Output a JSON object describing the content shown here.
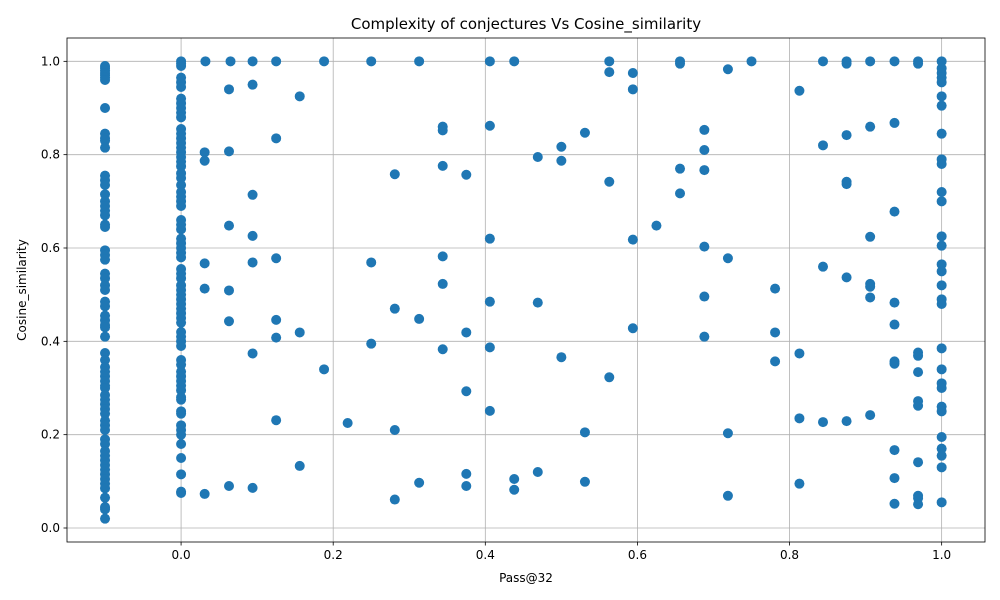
{
  "chart_data": {
    "type": "scatter",
    "title": "Complexity of conjectures Vs Cosine_similarity",
    "xlabel": "Pass@32",
    "ylabel": "Cosine_similarity",
    "xlim": [
      -0.15,
      1.057
    ],
    "ylim": [
      -0.03,
      1.05
    ],
    "xticks": [
      0.0,
      0.2,
      0.4,
      0.6,
      0.8,
      1.0
    ],
    "xtick_labels": [
      "0.0",
      "0.2",
      "0.4",
      "0.6",
      "0.8",
      "1.0"
    ],
    "yticks": [
      0.0,
      0.2,
      0.4,
      0.6,
      0.8,
      1.0
    ],
    "ytick_labels": [
      "0.0",
      "0.2",
      "0.4",
      "0.6",
      "0.8",
      "1.0"
    ],
    "grid": true,
    "marker_color": "#1f77b4",
    "columns": [
      {
        "x": -0.1,
        "y": [
          0.99,
          0.985,
          0.98,
          0.975,
          0.97,
          0.965,
          0.96,
          0.9,
          0.845,
          0.835,
          0.83,
          0.815,
          0.755,
          0.745,
          0.735,
          0.715,
          0.7,
          0.69,
          0.68,
          0.67,
          0.65,
          0.645,
          0.595,
          0.585,
          0.575,
          0.545,
          0.535,
          0.52,
          0.51,
          0.485,
          0.475,
          0.455,
          0.445,
          0.435,
          0.43,
          0.41,
          0.375,
          0.36,
          0.345,
          0.335,
          0.325,
          0.315,
          0.305,
          0.3,
          0.285,
          0.275,
          0.265,
          0.255,
          0.245,
          0.23,
          0.22,
          0.21,
          0.19,
          0.18,
          0.165,
          0.155,
          0.145,
          0.135,
          0.125,
          0.115,
          0.105,
          0.095,
          0.085,
          0.065,
          0.045,
          0.04,
          0.02
        ]
      },
      {
        "x": 0.0,
        "y": [
          1.0,
          0.995,
          0.99,
          0.965,
          0.955,
          0.945,
          0.92,
          0.91,
          0.9,
          0.89,
          0.88,
          0.855,
          0.845,
          0.835,
          0.825,
          0.815,
          0.805,
          0.795,
          0.785,
          0.775,
          0.76,
          0.75,
          0.735,
          0.72,
          0.71,
          0.7,
          0.69,
          0.66,
          0.65,
          0.64,
          0.62,
          0.61,
          0.6,
          0.59,
          0.58,
          0.555,
          0.545,
          0.535,
          0.52,
          0.51,
          0.5,
          0.49,
          0.48,
          0.47,
          0.46,
          0.45,
          0.44,
          0.42,
          0.41,
          0.4,
          0.39,
          0.36,
          0.35,
          0.335,
          0.325,
          0.315,
          0.305,
          0.295,
          0.28,
          0.275,
          0.25,
          0.245,
          0.22,
          0.21,
          0.2,
          0.18,
          0.15,
          0.115,
          0.078,
          0.075
        ]
      },
      {
        "x": 1.0,
        "y": [
          1.0,
          0.985,
          0.975,
          0.965,
          0.955,
          0.925,
          0.905,
          0.845,
          0.79,
          0.78,
          0.72,
          0.7,
          0.625,
          0.605,
          0.565,
          0.55,
          0.52,
          0.49,
          0.48,
          0.385,
          0.34,
          0.31,
          0.3,
          0.26,
          0.25,
          0.195,
          0.17,
          0.155,
          0.13,
          0.055
        ]
      }
    ],
    "points": [
      [
        0.032,
        1.0
      ],
      [
        0.065,
        1.0
      ],
      [
        0.094,
        1.0
      ],
      [
        0.125,
        1.0
      ],
      [
        0.188,
        1.0
      ],
      [
        0.25,
        1.0
      ],
      [
        0.313,
        1.0
      ],
      [
        0.406,
        1.0
      ],
      [
        0.438,
        1.0
      ],
      [
        0.563,
        1.0
      ],
      [
        0.656,
        1.0
      ],
      [
        0.656,
        0.995
      ],
      [
        0.75,
        1.0
      ],
      [
        0.844,
        1.0
      ],
      [
        0.875,
        1.0
      ],
      [
        0.875,
        0.995
      ],
      [
        0.906,
        1.0
      ],
      [
        0.938,
        1.0
      ],
      [
        0.969,
        1.0
      ],
      [
        0.969,
        0.995
      ],
      [
        0.063,
        0.94
      ],
      [
        0.094,
        0.95
      ],
      [
        0.156,
        0.925
      ],
      [
        0.563,
        0.977
      ],
      [
        0.594,
        0.975
      ],
      [
        0.594,
        0.94
      ],
      [
        0.719,
        0.983
      ],
      [
        0.813,
        0.937
      ],
      [
        0.125,
        0.835
      ],
      [
        0.031,
        0.805
      ],
      [
        0.031,
        0.787
      ],
      [
        0.063,
        0.807
      ],
      [
        0.344,
        0.86
      ],
      [
        0.344,
        0.852
      ],
      [
        0.406,
        0.862
      ],
      [
        0.5,
        0.817
      ],
      [
        0.531,
        0.847
      ],
      [
        0.469,
        0.795
      ],
      [
        0.5,
        0.787
      ],
      [
        0.688,
        0.853
      ],
      [
        0.688,
        0.81
      ],
      [
        0.844,
        0.82
      ],
      [
        0.875,
        0.842
      ],
      [
        0.906,
        0.86
      ],
      [
        0.938,
        0.868
      ],
      [
        0.344,
        0.776
      ],
      [
        0.281,
        0.758
      ],
      [
        0.375,
        0.757
      ],
      [
        0.563,
        0.742
      ],
      [
        0.656,
        0.77
      ],
      [
        0.688,
        0.767
      ],
      [
        0.656,
        0.717
      ],
      [
        0.875,
        0.742
      ],
      [
        0.875,
        0.737
      ],
      [
        0.094,
        0.714
      ],
      [
        0.063,
        0.648
      ],
      [
        0.094,
        0.626
      ],
      [
        0.406,
        0.62
      ],
      [
        0.594,
        0.618
      ],
      [
        0.625,
        0.648
      ],
      [
        0.688,
        0.603
      ],
      [
        0.938,
        0.678
      ],
      [
        0.906,
        0.624
      ],
      [
        0.031,
        0.567
      ],
      [
        0.094,
        0.569
      ],
      [
        0.125,
        0.578
      ],
      [
        0.25,
        0.569
      ],
      [
        0.344,
        0.582
      ],
      [
        0.719,
        0.578
      ],
      [
        0.844,
        0.56
      ],
      [
        0.875,
        0.537
      ],
      [
        0.906,
        0.523
      ],
      [
        0.906,
        0.517
      ],
      [
        0.781,
        0.513
      ],
      [
        0.031,
        0.513
      ],
      [
        0.063,
        0.509
      ],
      [
        0.344,
        0.523
      ],
      [
        0.281,
        0.47
      ],
      [
        0.406,
        0.485
      ],
      [
        0.469,
        0.483
      ],
      [
        0.688,
        0.496
      ],
      [
        0.906,
        0.494
      ],
      [
        0.938,
        0.483
      ],
      [
        0.063,
        0.443
      ],
      [
        0.125,
        0.446
      ],
      [
        0.125,
        0.408
      ],
      [
        0.156,
        0.419
      ],
      [
        0.313,
        0.448
      ],
      [
        0.375,
        0.419
      ],
      [
        0.594,
        0.428
      ],
      [
        0.688,
        0.41
      ],
      [
        0.781,
        0.419
      ],
      [
        0.938,
        0.436
      ],
      [
        0.094,
        0.374
      ],
      [
        0.25,
        0.395
      ],
      [
        0.344,
        0.383
      ],
      [
        0.406,
        0.387
      ],
      [
        0.5,
        0.366
      ],
      [
        0.563,
        0.323
      ],
      [
        0.188,
        0.34
      ],
      [
        0.375,
        0.293
      ],
      [
        0.781,
        0.357
      ],
      [
        0.813,
        0.374
      ],
      [
        0.938,
        0.357
      ],
      [
        0.938,
        0.352
      ],
      [
        0.969,
        0.376
      ],
      [
        0.969,
        0.369
      ],
      [
        0.969,
        0.334
      ],
      [
        0.969,
        0.272
      ],
      [
        0.969,
        0.262
      ],
      [
        0.406,
        0.251
      ],
      [
        0.125,
        0.231
      ],
      [
        0.219,
        0.225
      ],
      [
        0.281,
        0.21
      ],
      [
        0.531,
        0.205
      ],
      [
        0.719,
        0.203
      ],
      [
        0.813,
        0.235
      ],
      [
        0.844,
        0.227
      ],
      [
        0.875,
        0.229
      ],
      [
        0.906,
        0.242
      ],
      [
        0.938,
        0.167
      ],
      [
        0.156,
        0.133
      ],
      [
        0.031,
        0.073
      ],
      [
        0.063,
        0.09
      ],
      [
        0.094,
        0.086
      ],
      [
        0.281,
        0.061
      ],
      [
        0.313,
        0.097
      ],
      [
        0.375,
        0.116
      ],
      [
        0.375,
        0.09
      ],
      [
        0.438,
        0.105
      ],
      [
        0.438,
        0.082
      ],
      [
        0.469,
        0.12
      ],
      [
        0.531,
        0.099
      ],
      [
        0.719,
        0.069
      ],
      [
        0.813,
        0.095
      ],
      [
        0.938,
        0.107
      ],
      [
        0.938,
        0.052
      ],
      [
        0.969,
        0.141
      ],
      [
        0.969,
        0.069
      ],
      [
        0.969,
        0.064
      ],
      [
        0.969,
        0.051
      ]
    ]
  }
}
